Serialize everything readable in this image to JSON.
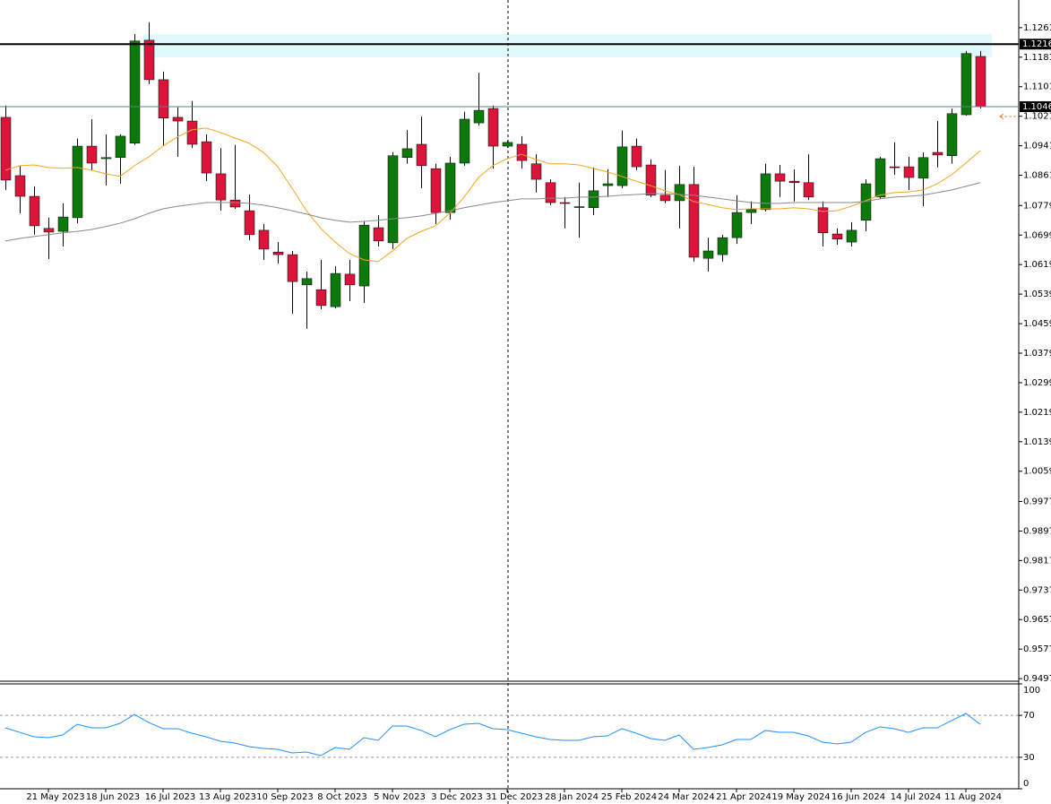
{
  "chart_data": [
    {
      "type": "candlestick",
      "categories": [
        null,
        null,
        null,
        "21 May 2023",
        null,
        null,
        null,
        "18 Jun 2023",
        null,
        null,
        null,
        "16 Jul 2023",
        null,
        null,
        null,
        "13 Aug 2023",
        null,
        null,
        null,
        "10 Sep 2023",
        null,
        null,
        null,
        "8 Oct 2023",
        null,
        null,
        null,
        "5 Nov 2023",
        null,
        null,
        null,
        "3 Dec 2023",
        null,
        null,
        null,
        "31 Dec 2023",
        null,
        null,
        null,
        "28 Jan 2024",
        null,
        null,
        null,
        "25 Feb 2024",
        null,
        null,
        null,
        "24 Mar 2024",
        null,
        null,
        null,
        "21 Apr 2024",
        null,
        null,
        null,
        "19 May 2024",
        null,
        null,
        null,
        "16 Jun 2024",
        null,
        null,
        null,
        "14 Jul 2024",
        null,
        null,
        null,
        "11 Aug 2024",
        null
      ],
      "open": [
        1.1018,
        1.086,
        1.0804,
        1.0717,
        1.0709,
        1.0746,
        1.094,
        1.0906,
        1.0909,
        1.0948,
        1.1227,
        1.112,
        1.1018,
        1.1008,
        1.0952,
        1.0865,
        1.0794,
        1.0765,
        1.0712,
        1.0653,
        1.0646,
        1.0564,
        1.0551,
        1.0505,
        1.0593,
        1.0561,
        1.0719,
        1.0678,
        1.0909,
        1.0945,
        1.0879,
        1.076,
        1.0894,
        1.1003,
        1.1042,
        1.094,
        1.0945,
        1.0892,
        1.0841,
        1.0787,
        1.0775,
        1.0773,
        1.0833,
        1.0833,
        1.094,
        1.0889,
        1.0807,
        1.0792,
        1.0836,
        1.0636,
        1.0646,
        1.0692,
        1.076,
        1.0768,
        1.0865,
        1.0845,
        1.0841,
        1.0773,
        1.0702,
        1.068,
        1.0739,
        1.0802,
        1.0884,
        1.0884,
        1.0853,
        1.0923,
        1.0914,
        1.1025,
        1.1183
      ],
      "high": [
        1.105,
        1.0887,
        1.0831,
        1.0746,
        1.0785,
        1.096,
        1.1013,
        1.0972,
        1.0972,
        1.1244,
        1.1276,
        1.1142,
        1.1045,
        1.1062,
        1.0972,
        1.0935,
        1.0943,
        1.0809,
        1.0729,
        1.068,
        1.0656,
        1.06,
        1.0632,
        1.0615,
        1.0632,
        1.0736,
        1.0753,
        1.0923,
        1.0984,
        1.102,
        1.0892,
        1.0911,
        1.1033,
        1.1139,
        1.105,
        1.0955,
        1.0967,
        1.0918,
        1.085,
        1.0802,
        1.0841,
        1.0882,
        1.0877,
        1.0982,
        1.096,
        1.0904,
        1.0875,
        1.0887,
        1.0884,
        1.0692,
        1.07,
        1.0807,
        1.079,
        1.0892,
        1.0889,
        1.0877,
        1.0918,
        1.079,
        1.0717,
        1.0734,
        1.085,
        1.0911,
        1.095,
        1.0911,
        1.0923,
        1.1008,
        1.1042,
        1.1198,
        1.1198
      ],
      "low": [
        1.0821,
        1.0758,
        1.07,
        1.0634,
        1.0668,
        1.0731,
        1.0875,
        1.0833,
        1.0838,
        1.0943,
        1.1108,
        1.094,
        1.0911,
        1.0935,
        1.0845,
        1.0765,
        1.077,
        1.0685,
        1.0632,
        1.0622,
        1.0486,
        1.0445,
        1.0498,
        1.05,
        1.052,
        1.0515,
        1.0668,
        1.0661,
        1.0892,
        1.0826,
        1.0729,
        1.0741,
        1.0887,
        1.0996,
        1.0879,
        1.0935,
        1.0879,
        1.0814,
        1.078,
        1.0717,
        1.0692,
        1.0753,
        1.0802,
        1.0826,
        1.0875,
        1.0802,
        1.0785,
        1.0717,
        1.0627,
        1.06,
        1.0627,
        1.0675,
        1.0729,
        1.0763,
        1.0802,
        1.079,
        1.0794,
        1.0668,
        1.0673,
        1.0668,
        1.0709,
        1.0797,
        1.0862,
        1.0821,
        1.0777,
        1.0882,
        1.0892,
        1.1023,
        1.1042
      ],
      "close": [
        1.0848,
        1.0804,
        1.0724,
        1.0707,
        1.0748,
        1.094,
        1.0894,
        1.0909,
        1.0967,
        1.1225,
        1.112,
        1.1016,
        1.1008,
        1.0945,
        1.0867,
        1.0794,
        1.0775,
        1.07,
        1.0661,
        1.0646,
        1.0573,
        1.0581,
        1.0508,
        1.0595,
        1.0564,
        1.0726,
        1.0683,
        1.0914,
        1.0933,
        1.0887,
        1.076,
        1.0894,
        1.1013,
        1.1037,
        1.094,
        1.095,
        1.0901,
        1.085,
        1.0787,
        1.0785,
        1.0776,
        1.0819,
        1.0838,
        1.0938,
        1.0884,
        1.0807,
        1.0792,
        1.0836,
        1.0639,
        1.0656,
        1.0692,
        1.076,
        1.0768,
        1.0865,
        1.0845,
        1.0841,
        1.0802,
        1.0705,
        1.0688,
        1.0712,
        1.0838,
        1.0906,
        1.0882,
        1.0855,
        1.0909,
        1.0916,
        1.1028,
        1.1191,
        1.1047
      ],
      "up_color": "#0b7a0b",
      "down_color": "#dc143c",
      "series": [
        {
          "color": "#f5a623",
          "values": [
            1.0875,
            1.0887,
            1.0889,
            1.0882,
            1.088,
            1.0882,
            1.0875,
            1.0865,
            1.0858,
            1.0887,
            1.0911,
            1.094,
            1.0965,
            1.0984,
            1.0989,
            1.0977,
            1.0962,
            1.0948,
            1.0923,
            1.0884,
            1.0826,
            1.0765,
            1.0717,
            1.068,
            1.0649,
            1.0632,
            1.0627,
            1.0656,
            1.069,
            1.0709,
            1.0724,
            1.0758,
            1.0802,
            1.0855,
            1.0887,
            1.0906,
            1.0918,
            1.0904,
            1.0892,
            1.0892,
            1.0889,
            1.088,
            1.087,
            1.0858,
            1.0845,
            1.0833,
            1.0819,
            1.0809,
            1.079,
            1.0782,
            1.0773,
            1.0768,
            1.077,
            1.077,
            1.077,
            1.0773,
            1.077,
            1.0763,
            1.0765,
            1.0777,
            1.0792,
            1.0807,
            1.0814,
            1.0816,
            1.0821,
            1.0838,
            1.0862,
            1.0894,
            1.0928
          ]
        },
        {
          "color": "#8a8a8a",
          "values": [
            1.0683,
            1.069,
            1.0695,
            1.07,
            1.0705,
            1.0709,
            1.0714,
            1.0722,
            1.0731,
            1.0743,
            1.0758,
            1.077,
            1.0777,
            1.0782,
            1.0787,
            1.0787,
            1.0787,
            1.0785,
            1.078,
            1.0773,
            1.0765,
            1.0756,
            1.0746,
            1.0739,
            1.0734,
            1.0736,
            1.0739,
            1.0743,
            1.0746,
            1.0751,
            1.0758,
            1.0765,
            1.0773,
            1.078,
            1.0787,
            1.0792,
            1.0797,
            1.0797,
            1.0799,
            1.0799,
            1.0802,
            1.0802,
            1.0804,
            1.0807,
            1.0809,
            1.0811,
            1.0811,
            1.0809,
            1.0807,
            1.0802,
            1.0797,
            1.0792,
            1.0787,
            1.0785,
            1.0785,
            1.0787,
            1.0787,
            1.0787,
            1.0787,
            1.0787,
            1.079,
            1.0797,
            1.0802,
            1.0804,
            1.0807,
            1.0814,
            1.0821,
            1.0831,
            1.0841
          ]
        }
      ],
      "zone": [
        1.1181,
        1.1244
      ],
      "zone_color": "#dff9fc",
      "price_lines": [
        {
          "value": 1.12164,
          "label": "1.12164",
          "color": "#000000"
        },
        {
          "value": 1.10469,
          "label": "1.10469",
          "color": "#5f7f8f"
        }
      ],
      "ylim": [
        0.949,
        1.1336
      ],
      "yticks": [
        {
          "value": 1.1261,
          "label": "1.12610"
        },
        {
          "value": 1.1181,
          "label": "1.11810"
        },
        {
          "value": 1.1101,
          "label": "1.11010"
        },
        {
          "value": 1.1021,
          "label": "1.10210"
        },
        {
          "value": 1.0941,
          "label": "1.09410"
        },
        {
          "value": 1.0861,
          "label": "1.08610"
        },
        {
          "value": 1.0779,
          "label": "1.07790"
        },
        {
          "value": 1.0699,
          "label": "1.06990"
        },
        {
          "value": 1.0619,
          "label": "1.06190"
        },
        {
          "value": 1.0539,
          "label": "1.05390"
        },
        {
          "value": 1.0459,
          "label": "1.04590"
        },
        {
          "value": 1.0379,
          "label": "1.03790"
        },
        {
          "value": 1.0299,
          "label": "1.02990"
        },
        {
          "value": 1.0219,
          "label": "1.02190"
        },
        {
          "value": 1.0139,
          "label": "1.01390"
        },
        {
          "value": 1.0059,
          "label": "1.00590"
        },
        {
          "value": 0.9977,
          "label": "0.99770"
        },
        {
          "value": 0.9897,
          "label": "0.98970"
        },
        {
          "value": 0.9817,
          "label": "0.98170"
        },
        {
          "value": 0.9737,
          "label": "0.97370"
        },
        {
          "value": 0.9657,
          "label": "0.96570"
        },
        {
          "value": 0.9577,
          "label": "0.95770"
        },
        {
          "value": 0.9497,
          "label": "0.94970"
        }
      ]
    },
    {
      "type": "line",
      "color": "#1e90ff",
      "values": [
        58.1,
        53.8,
        49.6,
        48.7,
        51.3,
        61.5,
        58.1,
        58.1,
        62.4,
        70.9,
        63.2,
        57.3,
        57.3,
        53.0,
        49.6,
        45.3,
        43.6,
        40.2,
        38.5,
        37.6,
        34.2,
        35.0,
        31.6,
        39.3,
        37.6,
        48.7,
        46.2,
        59.8,
        59.8,
        55.6,
        49.6,
        56.4,
        61.5,
        62.4,
        57.3,
        56.4,
        53.0,
        49.6,
        47.0,
        46.2,
        46.2,
        49.6,
        50.4,
        57.3,
        53.0,
        47.9,
        46.2,
        51.3,
        37.6,
        39.3,
        41.9,
        47.0,
        47.0,
        55.6,
        53.8,
        53.8,
        50.4,
        44.4,
        42.7,
        44.4,
        53.8,
        59.0,
        57.3,
        53.8,
        58.1,
        58.1,
        65.0,
        71.8,
        61.5
      ],
      "ylim": [
        0,
        100
      ],
      "yticks": [
        100,
        70,
        30,
        0
      ]
    }
  ]
}
